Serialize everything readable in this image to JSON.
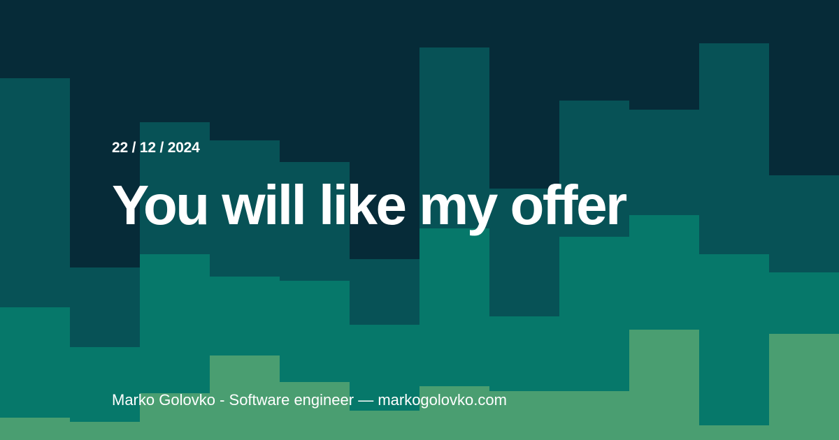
{
  "post": {
    "date": "22 / 12 / 2024",
    "title": "You will like my offer",
    "author": "Marko Golovko",
    "role": "Software engineer",
    "site": "markogolovko.com"
  },
  "palette": {
    "background": "#062b38",
    "layers": [
      "#075256",
      "#06786a",
      "#4a9e71"
    ],
    "text": "#ffffff"
  }
}
